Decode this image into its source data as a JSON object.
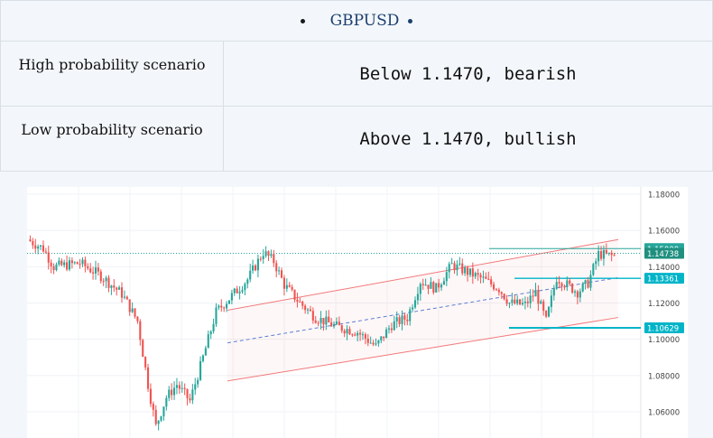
{
  "header": {
    "title": "GBPUSD"
  },
  "scenarios": [
    {
      "label": "High probability scenario",
      "value": "Below 1.1470, bearish"
    },
    {
      "label": "Low probability scenario",
      "value": "Above 1.1470, bullish"
    }
  ],
  "colors": {
    "up": "#26a69a",
    "down": "#ef5350",
    "channel": "#f2787a",
    "mid": "#5b7fd6",
    "level": "#00b4c8",
    "title": "#1d3f6e"
  },
  "chart_data": {
    "type": "candlestick",
    "symbol": "GBPUSD",
    "ylim": [
      1.05,
      1.18
    ],
    "y_ticks": [
      "1.18000",
      "1.16000",
      "1.14000",
      "1.12000",
      "1.10000",
      "1.08000",
      "1.06000"
    ],
    "y_tick_values": [
      1.18,
      1.16,
      1.14,
      1.12,
      1.1,
      1.08,
      1.06
    ],
    "price_labels": [
      {
        "text": "1.15000",
        "value": 1.15,
        "kind": "horizontal-line"
      },
      {
        "text": "1.14738",
        "value": 1.14738,
        "kind": "current-price"
      },
      {
        "text": "1.13361",
        "value": 1.13361,
        "kind": "support"
      },
      {
        "text": "1.10629",
        "value": 1.10629,
        "kind": "support"
      }
    ],
    "anchors": [
      [
        0,
        1.155
      ],
      [
        6,
        1.15
      ],
      [
        10,
        1.14
      ],
      [
        20,
        1.142
      ],
      [
        28,
        1.135
      ],
      [
        36,
        1.125
      ],
      [
        42,
        1.11
      ],
      [
        46,
        1.075
      ],
      [
        49,
        1.052
      ],
      [
        53,
        1.068
      ],
      [
        57,
        1.075
      ],
      [
        62,
        1.066
      ],
      [
        66,
        1.085
      ],
      [
        72,
        1.115
      ],
      [
        78,
        1.124
      ],
      [
        84,
        1.133
      ],
      [
        90,
        1.148
      ],
      [
        94,
        1.143
      ],
      [
        98,
        1.13
      ],
      [
        104,
        1.12
      ],
      [
        110,
        1.112
      ],
      [
        118,
        1.107
      ],
      [
        126,
        1.104
      ],
      [
        133,
        1.096
      ],
      [
        139,
        1.108
      ],
      [
        145,
        1.112
      ],
      [
        150,
        1.132
      ],
      [
        156,
        1.128
      ],
      [
        162,
        1.141
      ],
      [
        168,
        1.137
      ],
      [
        174,
        1.133
      ],
      [
        180,
        1.128
      ],
      [
        184,
        1.12
      ],
      [
        190,
        1.119
      ],
      [
        194,
        1.126
      ],
      [
        198,
        1.11
      ],
      [
        202,
        1.134
      ],
      [
        206,
        1.13
      ],
      [
        210,
        1.126
      ],
      [
        214,
        1.131
      ],
      [
        218,
        1.147
      ],
      [
        223,
        1.146
      ]
    ]
  }
}
